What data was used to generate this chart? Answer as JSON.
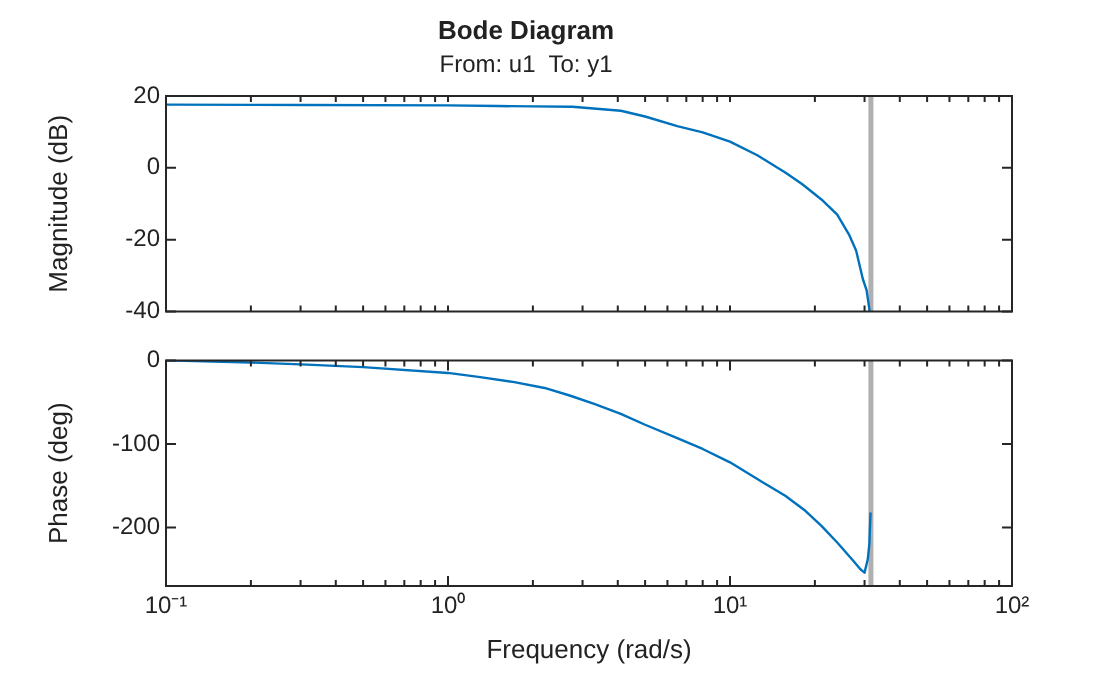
{
  "chart_data": [
    {
      "type": "line",
      "title": "Bode Diagram",
      "subtitle": "From: u1  To: y1",
      "ylabel": "Magnitude (dB)",
      "log": "x",
      "grid": false,
      "tick_labels": "y",
      "marker": "none",
      "line_style": "solid",
      "xlim": [
        0.1,
        100
      ],
      "ylim": [
        -40,
        20
      ],
      "yticks": [
        -40,
        -20,
        0,
        20
      ],
      "xticks": [
        {
          "value": 0.1,
          "label": null
        },
        {
          "value": 0.2,
          "label": null
        },
        {
          "value": 0.3,
          "label": null
        },
        {
          "value": 0.4,
          "label": null
        },
        {
          "value": 0.5,
          "label": null
        },
        {
          "value": 0.6,
          "label": null
        },
        {
          "value": 0.7,
          "label": null
        },
        {
          "value": 0.8,
          "label": null
        },
        {
          "value": 0.9,
          "label": null
        },
        {
          "value": 1,
          "label": null
        },
        {
          "value": 2,
          "label": null
        },
        {
          "value": 3,
          "label": null
        },
        {
          "value": 4,
          "label": null
        },
        {
          "value": 5,
          "label": null
        },
        {
          "value": 6,
          "label": null
        },
        {
          "value": 7,
          "label": null
        },
        {
          "value": 8,
          "label": null
        },
        {
          "value": 9,
          "label": null
        },
        {
          "value": 10,
          "label": null
        },
        {
          "value": 20,
          "label": null
        },
        {
          "value": 30,
          "label": null
        },
        {
          "value": 40,
          "label": null
        },
        {
          "value": 50,
          "label": null
        },
        {
          "value": 60,
          "label": null
        },
        {
          "value": 70,
          "label": null
        },
        {
          "value": 80,
          "label": null
        },
        {
          "value": 90,
          "label": null
        },
        {
          "value": 100,
          "label": null
        }
      ],
      "ref_lines": [
        {
          "axis": "x",
          "value": 31.6,
          "color": "#b0b0b0"
        }
      ],
      "series": [
        {
          "color": "#0072bd",
          "x": [
            0.1,
            0.316,
            1,
            1.5,
            2,
            2.76,
            3.2,
            4.1,
            5,
            6.5,
            8,
            10,
            12.5,
            15.7,
            18,
            21.1,
            24,
            26.4,
            28,
            29.6,
            30.5,
            31.3
          ],
          "values": [
            17.6,
            17.5,
            17.4,
            17.2,
            17.1,
            17,
            16.6,
            15.9,
            14.3,
            11.6,
            9.9,
            7.3,
            3.5,
            -1.3,
            -4.5,
            -8.8,
            -13,
            -18.5,
            -23,
            -31,
            -34,
            -40
          ]
        }
      ]
    },
    {
      "type": "line",
      "xlabel": "Frequency (rad/s)",
      "ylabel": "Phase (deg)",
      "log": "x",
      "grid": false,
      "marker": "none",
      "line_style": "solid",
      "xlim": [
        0.1,
        100
      ],
      "ylim": [
        -270,
        0
      ],
      "yticks": [
        -200,
        -100,
        0
      ],
      "xticks": [
        {
          "value": 0.1,
          "label": "10⁻¹"
        },
        {
          "value": 0.2,
          "label": null
        },
        {
          "value": 0.3,
          "label": null
        },
        {
          "value": 0.4,
          "label": null
        },
        {
          "value": 0.5,
          "label": null
        },
        {
          "value": 0.6,
          "label": null
        },
        {
          "value": 0.7,
          "label": null
        },
        {
          "value": 0.8,
          "label": null
        },
        {
          "value": 0.9,
          "label": null
        },
        {
          "value": 1,
          "label": "10⁰"
        },
        {
          "value": 2,
          "label": null
        },
        {
          "value": 3,
          "label": null
        },
        {
          "value": 4,
          "label": null
        },
        {
          "value": 5,
          "label": null
        },
        {
          "value": 6,
          "label": null
        },
        {
          "value": 7,
          "label": null
        },
        {
          "value": 8,
          "label": null
        },
        {
          "value": 9,
          "label": null
        },
        {
          "value": 10,
          "label": "10¹"
        },
        {
          "value": 20,
          "label": null
        },
        {
          "value": 30,
          "label": null
        },
        {
          "value": 40,
          "label": null
        },
        {
          "value": 50,
          "label": null
        },
        {
          "value": 60,
          "label": null
        },
        {
          "value": 70,
          "label": null
        },
        {
          "value": 80,
          "label": null
        },
        {
          "value": 90,
          "label": null
        },
        {
          "value": 100,
          "label": "10²"
        }
      ],
      "ref_lines": [
        {
          "axis": "x",
          "value": 31.6,
          "color": "#b0b0b0"
        }
      ],
      "series": [
        {
          "color": "#0072bd",
          "x": [
            0.1,
            0.2,
            0.316,
            0.5,
            1,
            1.3,
            1.72,
            2.2,
            2.7,
            3.3,
            4.1,
            5,
            6.5,
            8,
            10,
            12.5,
            15.7,
            18.5,
            21.1,
            24,
            27.4,
            29,
            30,
            30.8,
            31.2,
            31.5
          ],
          "values": [
            0,
            -2.5,
            -5,
            -8,
            -15,
            -20,
            -26,
            -33,
            -42,
            -52,
            -64,
            -77,
            -93,
            -106,
            -122,
            -142,
            -162,
            -180,
            -198,
            -218,
            -240,
            -250,
            -254,
            -238,
            -220,
            -182
          ]
        }
      ]
    }
  ]
}
